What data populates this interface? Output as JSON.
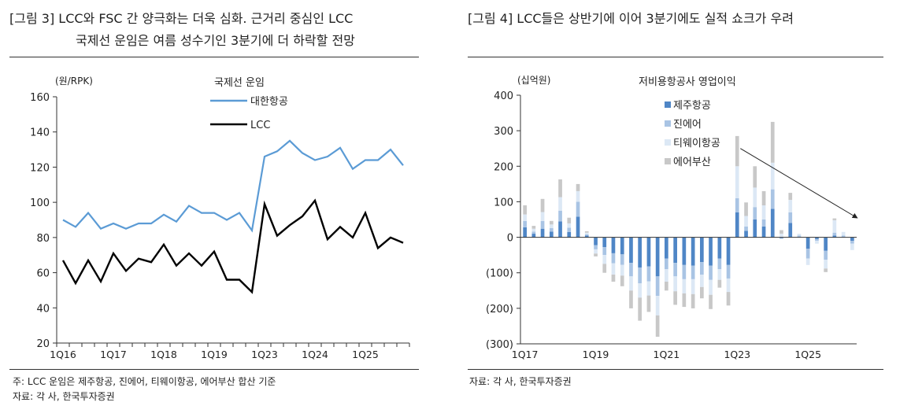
{
  "left": {
    "title_line1": "[그림 3] LCC와 FSC 간 양극화는 더욱 심화. 근거리 중심인 LCC",
    "title_line2": "국제선 운임은 여름 성수기인 3분기에 더 하락할 전망",
    "footnote": "주: LCC 운임은 제주항공, 진에어, 티웨이항공, 에어부산 합산 기준",
    "source": "자료: 각 사, 한국투자증권"
  },
  "right": {
    "title": "[그림 4] LCC들은 상반기에 이어 3분기에도 실적 쇼크가 우려",
    "source": "자료: 각 사, 한국투자증권"
  },
  "chart_data": [
    {
      "type": "line",
      "unit_label": "(원/RPK)",
      "legend_title": "국제선 운임",
      "ylim": [
        20,
        160
      ],
      "yticks": [
        20,
        40,
        60,
        80,
        100,
        120,
        140,
        160
      ],
      "xtick_labels": [
        "1Q16",
        "1Q17",
        "1Q18",
        "1Q19",
        "1Q23",
        "1Q24",
        "1Q25"
      ],
      "xtick_index": [
        0,
        4,
        8,
        12,
        16,
        20,
        24
      ],
      "series": [
        {
          "name": "대한항공",
          "color": "#5b9bd5",
          "values": [
            90,
            86,
            94,
            85,
            88,
            85,
            88,
            88,
            93,
            89,
            98,
            94,
            94,
            90,
            94,
            84,
            126,
            129,
            135,
            128,
            124,
            126,
            131,
            119,
            124,
            124,
            130,
            121
          ]
        },
        {
          "name": "LCC",
          "color": "#000000",
          "values": [
            67,
            54,
            67,
            55,
            71,
            61,
            68,
            66,
            76,
            64,
            71,
            64,
            72,
            56,
            56,
            49,
            99,
            81,
            87,
            92,
            101,
            79,
            86,
            80,
            94,
            74,
            80,
            77
          ]
        }
      ]
    },
    {
      "type": "bar",
      "stacked": true,
      "unit_label": "(십억원)",
      "legend_title": "저비용항공사 영업이익",
      "ylim": [
        -300,
        400
      ],
      "yticks": [
        -300,
        -200,
        -100,
        0,
        100,
        200,
        300,
        400
      ],
      "ytick_labels": [
        "(300)",
        "(200)",
        "(100)",
        "0",
        "100",
        "200",
        "300",
        "400"
      ],
      "xtick_labels": [
        "1Q17",
        "1Q19",
        "1Q21",
        "1Q23",
        "1Q25"
      ],
      "xtick_index": [
        0,
        8,
        16,
        24,
        32
      ],
      "series": [
        {
          "name": "제주항공",
          "color": "#4f86c6",
          "values": [
            28,
            10,
            24,
            16,
            45,
            15,
            58,
            5,
            -22,
            -28,
            -45,
            -48,
            -72,
            -85,
            -82,
            -110,
            -60,
            -72,
            -78,
            -80,
            -70,
            -80,
            -60,
            -78,
            70,
            18,
            50,
            30,
            80,
            -2,
            40,
            0,
            -32,
            -5,
            -38,
            5,
            0,
            -10
          ]
        },
        {
          "name": "진에어",
          "color": "#a9c4e4",
          "values": [
            18,
            6,
            22,
            10,
            30,
            12,
            42,
            3,
            -12,
            -22,
            -28,
            -30,
            -38,
            -45,
            -42,
            -55,
            -30,
            -38,
            -40,
            -38,
            -35,
            -40,
            -30,
            -38,
            40,
            12,
            35,
            20,
            55,
            -2,
            30,
            5,
            -28,
            -5,
            -25,
            8,
            5,
            -8
          ]
        },
        {
          "name": "티웨이항공",
          "color": "#dce8f5",
          "values": [
            18,
            8,
            25,
            10,
            38,
            12,
            30,
            5,
            -12,
            -25,
            -32,
            -30,
            -40,
            -40,
            -40,
            -55,
            -35,
            -42,
            -40,
            -42,
            -35,
            -42,
            -30,
            -38,
            90,
            30,
            55,
            40,
            75,
            10,
            35,
            5,
            -18,
            -8,
            -25,
            35,
            10,
            -18
          ]
        },
        {
          "name": "에어부산",
          "color": "#c8c8c8",
          "values": [
            26,
            8,
            37,
            10,
            50,
            16,
            20,
            4,
            -8,
            -25,
            -20,
            -30,
            -50,
            -65,
            -46,
            -60,
            -25,
            -38,
            -38,
            -40,
            -32,
            -40,
            -22,
            -38,
            85,
            38,
            60,
            40,
            115,
            10,
            20,
            0,
            0,
            0,
            -10,
            5,
            0,
            0
          ]
        }
      ]
    }
  ]
}
